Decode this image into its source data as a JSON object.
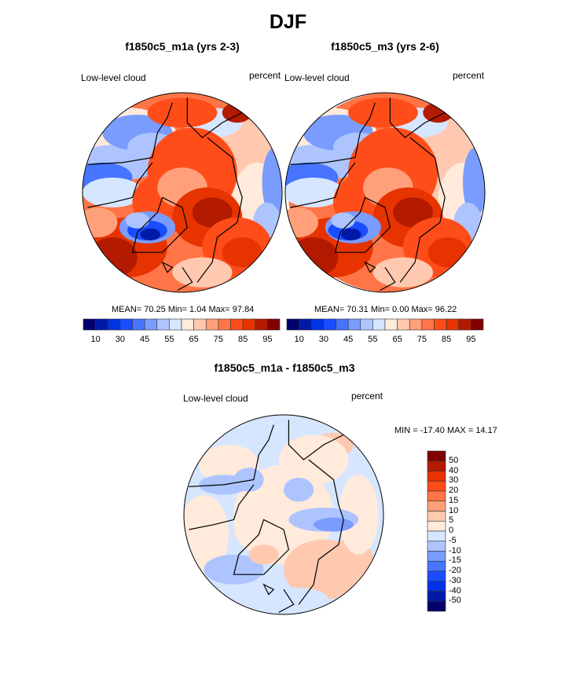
{
  "figure": {
    "title": "DJF"
  },
  "chart_data": [
    {
      "type": "heatmap",
      "projection": "north-polar-stereographic",
      "title": "f1850c5_m1a (yrs 2-3)",
      "left_label": "Low-level cloud",
      "right_label": "percent",
      "stats_text": "MEAN=  70.25  Min=   1.04  Max=  97.84",
      "stats": {
        "mean": 70.25,
        "min": 1.04,
        "max": 97.84
      },
      "colorbar": {
        "orientation": "horizontal",
        "levels": [
          10,
          20,
          30,
          40,
          45,
          50,
          55,
          60,
          65,
          70,
          75,
          80,
          85,
          90,
          95
        ],
        "tick_labels": [
          "10",
          "30",
          "45",
          "55",
          "65",
          "75",
          "85",
          "95"
        ]
      },
      "regions": {
        "central_arctic": "75-90",
        "greenland": "10-45",
        "north_atlantic": "85-95",
        "siberia_north_america_land": "45-70"
      }
    },
    {
      "type": "heatmap",
      "projection": "north-polar-stereographic",
      "title": "f1850c5_m3 (yrs 2-6)",
      "left_label": "Low-level cloud",
      "right_label": "percent",
      "stats_text": "MEAN=  70.31  Min=   0.00  Max=  96.22",
      "stats": {
        "mean": 70.31,
        "min": 0.0,
        "max": 96.22
      },
      "colorbar": {
        "orientation": "horizontal",
        "levels": [
          10,
          20,
          30,
          40,
          45,
          50,
          55,
          60,
          65,
          70,
          75,
          80,
          85,
          90,
          95
        ],
        "tick_labels": [
          "10",
          "30",
          "45",
          "55",
          "65",
          "75",
          "85",
          "95"
        ]
      },
      "regions": {
        "central_arctic": "75-90",
        "greenland": "10-45",
        "north_atlantic": "85-95",
        "siberia_north_america_land": "45-70"
      }
    },
    {
      "type": "heatmap",
      "projection": "north-polar-stereographic",
      "title": "f1850c5_m1a - f1850c5_m3",
      "left_label": "Low-level cloud",
      "right_label": "percent",
      "stats_text": "MIN = -17.40 MAX =  14.17",
      "stats": {
        "min": -17.4,
        "max": 14.17
      },
      "colorbar": {
        "orientation": "vertical",
        "levels": [
          -50,
          -40,
          -30,
          -20,
          -15,
          -10,
          -5,
          0,
          5,
          10,
          15,
          20,
          30,
          40,
          50
        ],
        "tick_labels": [
          "50",
          "40",
          "30",
          "20",
          "15",
          "10",
          "5",
          "0",
          "-5",
          "-10",
          "-15",
          "-20",
          "-30",
          "-40",
          "-50"
        ]
      },
      "regions": {
        "central_arctic": "0-5",
        "eurasia_north": "-10 to -5",
        "north_atlantic_europe": "5-15",
        "north_pacific": "-5-0"
      }
    }
  ],
  "palette": [
    "#03006e",
    "#001aa8",
    "#0033e6",
    "#1a4dff",
    "#4775ff",
    "#7a9cff",
    "#adc4ff",
    "#d6e6ff",
    "#ffeadb",
    "#ffc9b0",
    "#ffa07a",
    "#ff7547",
    "#ff4d1a",
    "#e63300",
    "#b31a00",
    "#800000"
  ]
}
